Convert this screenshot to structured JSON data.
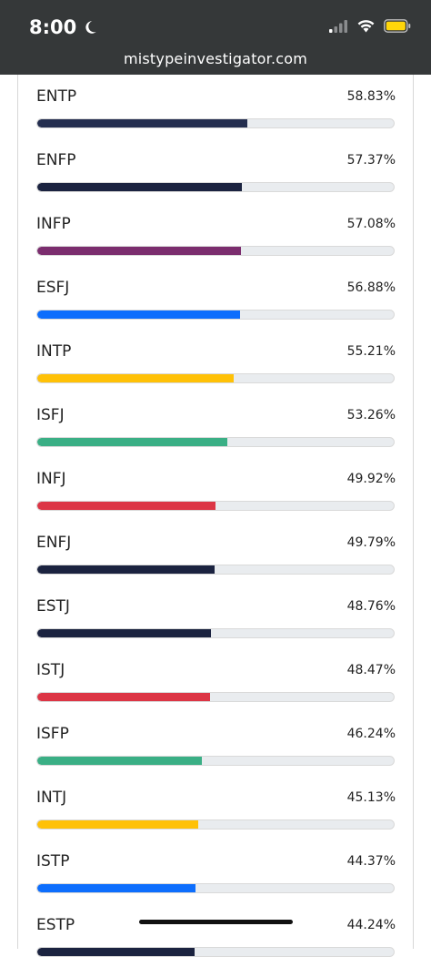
{
  "status_bar": {
    "time": "8:00",
    "url": "mistypeinvestigator.com"
  },
  "results": [
    {
      "type": "ENTP",
      "percent": "58.83%",
      "value": 58.83,
      "color": "#242e4f"
    },
    {
      "type": "ENFP",
      "percent": "57.37%",
      "value": 57.37,
      "color": "#1b2340"
    },
    {
      "type": "INFP",
      "percent": "57.08%",
      "value": 57.08,
      "color": "#7b2d6e"
    },
    {
      "type": "ESFJ",
      "percent": "56.88%",
      "value": 56.88,
      "color": "#0d6efd"
    },
    {
      "type": "INTP",
      "percent": "55.21%",
      "value": 55.21,
      "color": "#ffc107"
    },
    {
      "type": "ISFJ",
      "percent": "53.26%",
      "value": 53.26,
      "color": "#3aaf85"
    },
    {
      "type": "INFJ",
      "percent": "49.92%",
      "value": 49.92,
      "color": "#dc3545"
    },
    {
      "type": "ENFJ",
      "percent": "49.79%",
      "value": 49.79,
      "color": "#1b2340"
    },
    {
      "type": "ESTJ",
      "percent": "48.76%",
      "value": 48.76,
      "color": "#1b2340"
    },
    {
      "type": "ISTJ",
      "percent": "48.47%",
      "value": 48.47,
      "color": "#dc3545"
    },
    {
      "type": "ISFP",
      "percent": "46.24%",
      "value": 46.24,
      "color": "#3aaf85"
    },
    {
      "type": "INTJ",
      "percent": "45.13%",
      "value": 45.13,
      "color": "#ffc107"
    },
    {
      "type": "ISTP",
      "percent": "44.37%",
      "value": 44.37,
      "color": "#0d6efd"
    },
    {
      "type": "ESTP",
      "percent": "44.24%",
      "value": 44.24,
      "color": "#1b2340"
    }
  ],
  "colors": {
    "topbar_bg": "#353839",
    "track_bg": "#e9ecef"
  }
}
